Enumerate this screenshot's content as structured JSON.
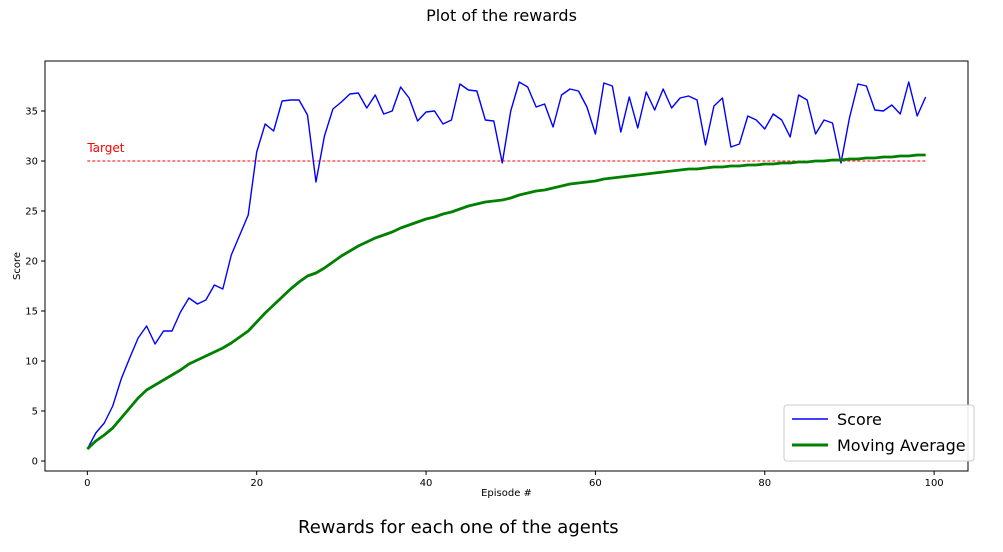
{
  "chart_data": {
    "type": "line",
    "title": "Plot of the rewards",
    "caption": "Rewards for each one of the agents",
    "xlabel": "Episode #",
    "ylabel": "Score",
    "xlim": [
      -5,
      104
    ],
    "ylim": [
      -1,
      40
    ],
    "xticks": [
      0,
      20,
      40,
      60,
      80,
      100
    ],
    "yticks": [
      0,
      5,
      10,
      15,
      20,
      25,
      30,
      35
    ],
    "legend_position": "lower-right",
    "x": [
      0,
      1,
      2,
      3,
      4,
      5,
      6,
      7,
      8,
      9,
      10,
      11,
      12,
      13,
      14,
      15,
      16,
      17,
      18,
      19,
      20,
      21,
      22,
      23,
      24,
      25,
      26,
      27,
      28,
      29,
      30,
      31,
      32,
      33,
      34,
      35,
      36,
      37,
      38,
      39,
      40,
      41,
      42,
      43,
      44,
      45,
      46,
      47,
      48,
      49,
      50,
      51,
      52,
      53,
      54,
      55,
      56,
      57,
      58,
      59,
      60,
      61,
      62,
      63,
      64,
      65,
      66,
      67,
      68,
      69,
      70,
      71,
      72,
      73,
      74,
      75,
      76,
      77,
      78,
      79,
      80,
      81,
      82,
      83,
      84,
      85,
      86,
      87,
      88,
      89,
      90,
      91,
      92,
      93,
      94,
      95,
      96,
      97,
      98,
      99
    ],
    "series": [
      {
        "name": "Score",
        "color": "#0000ff",
        "values": [
          1.2,
          2.8,
          3.8,
          5.5,
          8.2,
          10.3,
          12.3,
          13.5,
          11.7,
          13.0,
          13.0,
          14.9,
          16.3,
          15.7,
          16.1,
          17.6,
          17.2,
          20.6,
          22.6,
          24.6,
          30.9,
          33.7,
          33.0,
          36.0,
          36.1,
          36.1,
          34.6,
          27.9,
          32.5,
          35.2,
          35.9,
          36.7,
          36.8,
          35.3,
          36.6,
          34.7,
          35.0,
          37.4,
          36.3,
          34.0,
          34.9,
          35.0,
          33.7,
          34.1,
          37.7,
          37.1,
          37.0,
          34.1,
          34.0,
          29.8,
          35.0,
          37.9,
          37.4,
          35.4,
          35.7,
          33.4,
          36.6,
          37.2,
          37.0,
          35.4,
          32.7,
          37.8,
          37.5,
          32.9,
          36.4,
          33.3,
          36.9,
          35.1,
          37.2,
          35.3,
          36.3,
          36.5,
          36.1,
          31.6,
          35.5,
          36.3,
          31.4,
          31.7,
          34.5,
          34.1,
          33.2,
          34.7,
          34.1,
          32.4,
          36.6,
          36.1,
          32.7,
          34.1,
          33.8,
          29.8,
          34.3,
          37.7,
          37.5,
          35.1,
          35.0,
          35.6,
          34.7,
          37.9,
          34.5,
          36.4
        ]
      },
      {
        "name": "Moving Average",
        "color": "#008000",
        "values": [
          1.2,
          2.0,
          2.6,
          3.3,
          4.3,
          5.3,
          6.3,
          7.1,
          7.6,
          8.1,
          8.6,
          9.1,
          9.7,
          10.1,
          10.5,
          10.9,
          11.3,
          11.8,
          12.4,
          13.0,
          13.9,
          14.8,
          15.6,
          16.4,
          17.2,
          17.9,
          18.5,
          18.8,
          19.3,
          19.9,
          20.5,
          21.0,
          21.5,
          21.9,
          22.3,
          22.6,
          22.9,
          23.3,
          23.6,
          23.9,
          24.2,
          24.4,
          24.7,
          24.9,
          25.2,
          25.5,
          25.7,
          25.9,
          26.0,
          26.1,
          26.3,
          26.6,
          26.8,
          27.0,
          27.1,
          27.3,
          27.5,
          27.7,
          27.8,
          27.9,
          28.0,
          28.2,
          28.3,
          28.4,
          28.5,
          28.6,
          28.7,
          28.8,
          28.9,
          29.0,
          29.1,
          29.2,
          29.2,
          29.3,
          29.4,
          29.4,
          29.5,
          29.5,
          29.6,
          29.6,
          29.7,
          29.7,
          29.8,
          29.8,
          29.9,
          29.9,
          30.0,
          30.0,
          30.1,
          30.1,
          30.2,
          30.2,
          30.3,
          30.3,
          30.4,
          30.4,
          30.5,
          30.5,
          30.6,
          30.6
        ]
      }
    ],
    "target": {
      "label": "Target",
      "y": 30,
      "x_range": [
        0,
        99
      ],
      "color": "#ff0000"
    }
  }
}
